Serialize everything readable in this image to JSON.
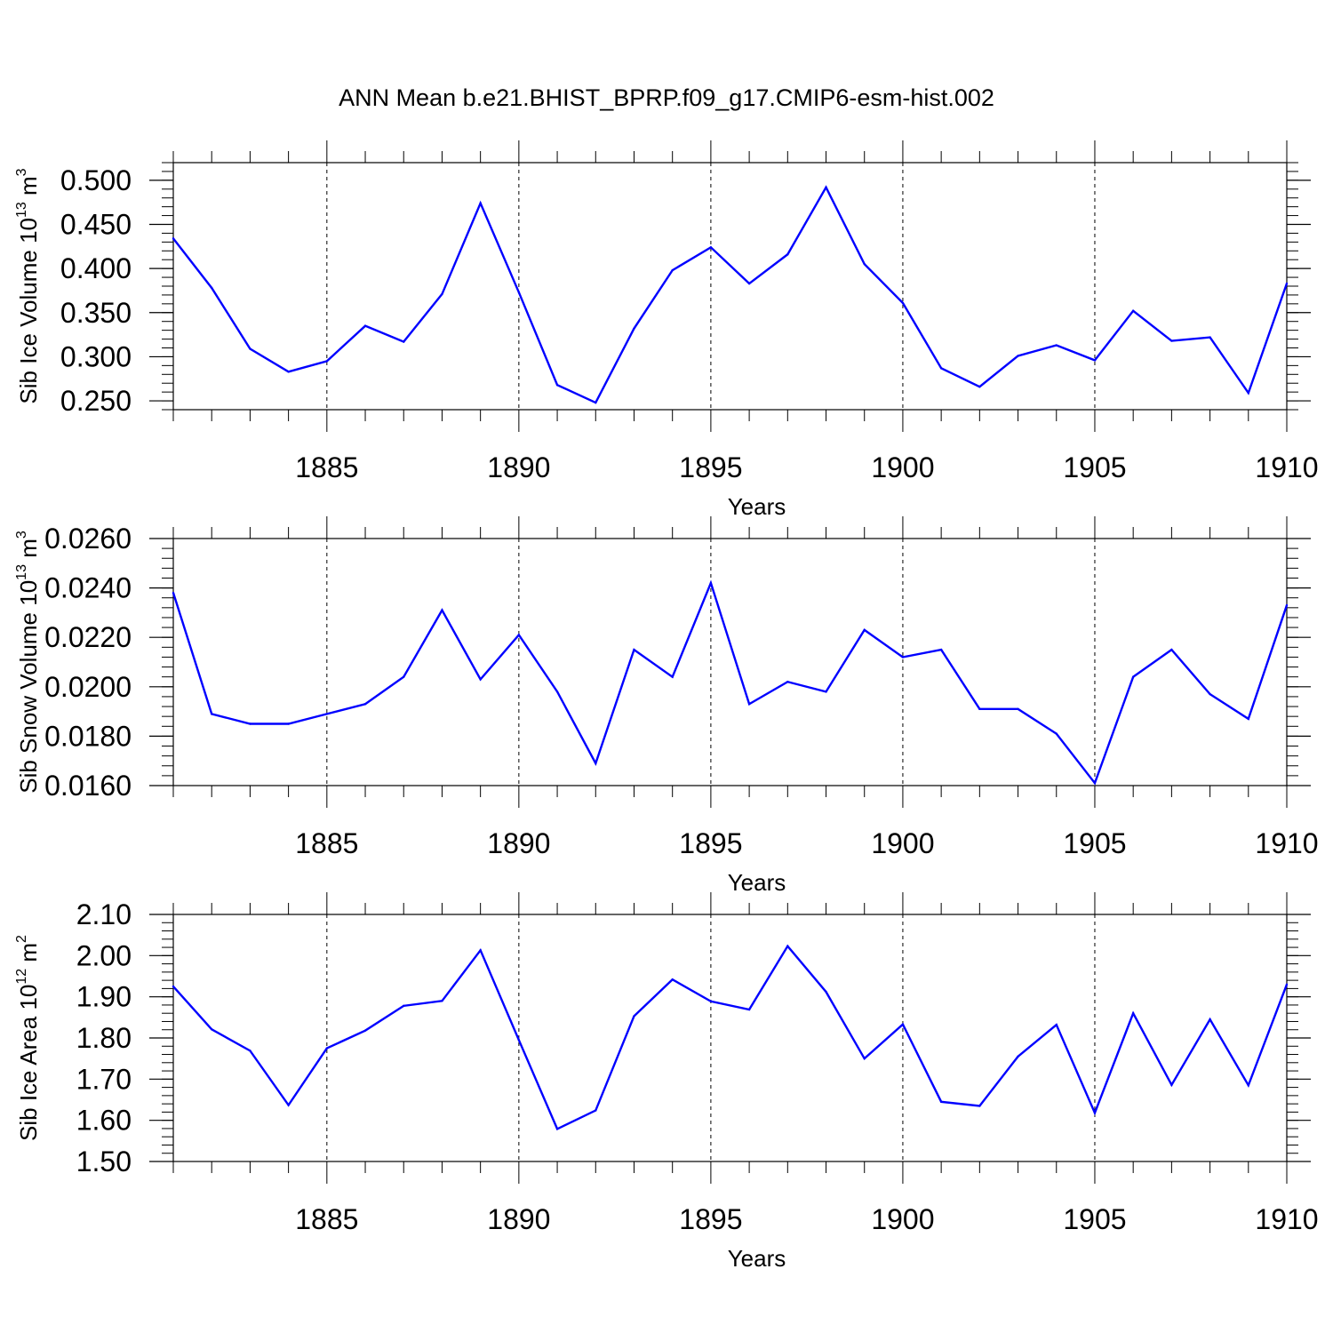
{
  "title": "ANN Mean b.e21.BHIST_BPRP.f09_g17.CMIP6-esm-hist.002",
  "line_color": "#0000ff",
  "chart_data": [
    {
      "type": "line",
      "ylabel": "Sib Ice Volume 10",
      "ylabel_exp": "13",
      "ylabel_unit": " m",
      "ylabel_unit_exp": "3",
      "xlabel": "Years",
      "xlim": [
        1881,
        1910
      ],
      "ylim": [
        0.24,
        0.52
      ],
      "yticks": [
        0.25,
        0.3,
        0.35,
        0.4,
        0.45,
        0.5
      ],
      "ytick_labels": [
        "0.250",
        "0.300",
        "0.350",
        "0.400",
        "0.450",
        "0.500"
      ],
      "ytick_minor": 0.01,
      "xticks": [
        1885,
        1890,
        1895,
        1900,
        1905,
        1910
      ],
      "xtick_labels": [
        "1885",
        "1890",
        "1895",
        "1900",
        "1905",
        "1910"
      ],
      "x": [
        1881,
        1882,
        1883,
        1884,
        1885,
        1886,
        1887,
        1888,
        1889,
        1890,
        1891,
        1892,
        1893,
        1894,
        1895,
        1896,
        1897,
        1898,
        1899,
        1900,
        1901,
        1902,
        1903,
        1904,
        1905,
        1906,
        1907,
        1908,
        1909,
        1910
      ],
      "y": [
        0.434,
        0.378,
        0.309,
        0.283,
        0.295,
        0.335,
        0.317,
        0.371,
        0.474,
        0.373,
        0.268,
        0.248,
        0.332,
        0.398,
        0.424,
        0.383,
        0.416,
        0.492,
        0.405,
        0.361,
        0.287,
        0.266,
        0.301,
        0.313,
        0.296,
        0.352,
        0.318,
        0.322,
        0.259,
        0.383
      ]
    },
    {
      "type": "line",
      "ylabel": "Sib Snow Volume 10",
      "ylabel_exp": "13",
      "ylabel_unit": " m",
      "ylabel_unit_exp": "3",
      "xlabel": "Years",
      "xlim": [
        1881,
        1910
      ],
      "ylim": [
        0.016,
        0.026
      ],
      "yticks": [
        0.016,
        0.018,
        0.02,
        0.022,
        0.024,
        0.026
      ],
      "ytick_labels": [
        "0.0160",
        "0.0180",
        "0.0200",
        "0.0220",
        "0.0240",
        "0.0260"
      ],
      "ytick_minor": 0.0004,
      "xticks": [
        1885,
        1890,
        1895,
        1900,
        1905,
        1910
      ],
      "xtick_labels": [
        "1885",
        "1890",
        "1895",
        "1900",
        "1905",
        "1910"
      ],
      "x": [
        1881,
        1882,
        1883,
        1884,
        1885,
        1886,
        1887,
        1888,
        1889,
        1890,
        1891,
        1892,
        1893,
        1894,
        1895,
        1896,
        1897,
        1898,
        1899,
        1900,
        1901,
        1902,
        1903,
        1904,
        1905,
        1906,
        1907,
        1908,
        1909,
        1910
      ],
      "y": [
        0.0238,
        0.0189,
        0.0185,
        0.0185,
        0.0189,
        0.0193,
        0.0204,
        0.0231,
        0.0203,
        0.0221,
        0.0198,
        0.0169,
        0.0215,
        0.0204,
        0.0242,
        0.0193,
        0.0202,
        0.0198,
        0.0223,
        0.0212,
        0.0215,
        0.0191,
        0.0191,
        0.0181,
        0.0161,
        0.0204,
        0.0215,
        0.0197,
        0.0187,
        0.0233
      ]
    },
    {
      "type": "line",
      "ylabel": "Sib Ice Area 10",
      "ylabel_exp": "12",
      "ylabel_unit": " m",
      "ylabel_unit_exp": "2",
      "xlabel": "Years",
      "xlim": [
        1881,
        1910
      ],
      "ylim": [
        1.5,
        2.1
      ],
      "yticks": [
        1.5,
        1.6,
        1.7,
        1.8,
        1.9,
        2.0,
        2.1
      ],
      "ytick_labels": [
        "1.50",
        "1.60",
        "1.70",
        "1.80",
        "1.90",
        "2.00",
        "2.10"
      ],
      "ytick_minor": 0.02,
      "xticks": [
        1885,
        1890,
        1895,
        1900,
        1905,
        1910
      ],
      "xtick_labels": [
        "1885",
        "1890",
        "1895",
        "1900",
        "1905",
        "1910"
      ],
      "x": [
        1881,
        1882,
        1883,
        1884,
        1885,
        1886,
        1887,
        1888,
        1889,
        1890,
        1891,
        1892,
        1893,
        1894,
        1895,
        1896,
        1897,
        1898,
        1899,
        1900,
        1901,
        1902,
        1903,
        1904,
        1905,
        1906,
        1907,
        1908,
        1909,
        1910
      ],
      "y": [
        1.925,
        1.821,
        1.769,
        1.637,
        1.775,
        1.818,
        1.878,
        1.89,
        2.013,
        1.795,
        1.579,
        1.624,
        1.853,
        1.942,
        1.889,
        1.869,
        2.023,
        1.912,
        1.75,
        1.833,
        1.645,
        1.635,
        1.755,
        1.832,
        1.618,
        1.86,
        1.686,
        1.845,
        1.685,
        1.93
      ]
    }
  ]
}
